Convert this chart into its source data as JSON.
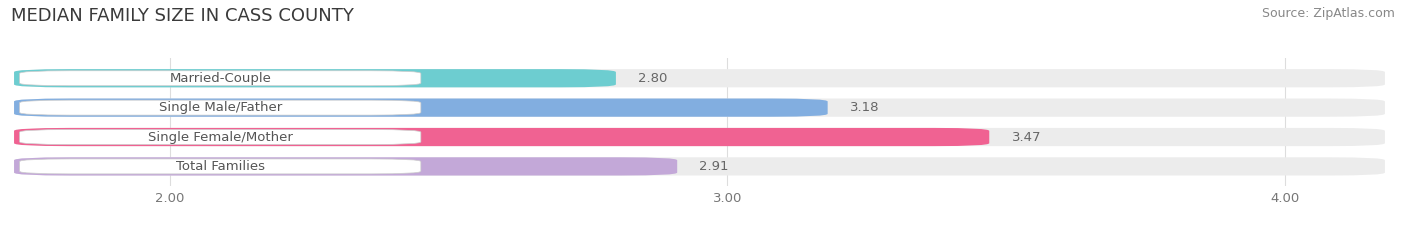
{
  "title": "MEDIAN FAMILY SIZE IN CASS COUNTY",
  "source": "Source: ZipAtlas.com",
  "categories": [
    "Married-Couple",
    "Single Male/Father",
    "Single Female/Mother",
    "Total Families"
  ],
  "values": [
    2.8,
    3.18,
    3.47,
    2.91
  ],
  "bar_colors": [
    "#6dcdd0",
    "#82aee0",
    "#f06292",
    "#c3a8d8"
  ],
  "bar_labels": [
    "2.80",
    "3.18",
    "3.47",
    "2.91"
  ],
  "xlim_min": 1.72,
  "xlim_max": 4.18,
  "xticks": [
    2.0,
    3.0,
    4.0
  ],
  "xtick_labels": [
    "2.00",
    "3.00",
    "4.00"
  ],
  "background_color": "#ffffff",
  "bar_bg_color": "#ececec",
  "bar_height": 0.62,
  "label_pill_color": "#ffffff",
  "label_text_color": "#555555",
  "value_text_color": "#666666",
  "title_fontsize": 13,
  "label_fontsize": 9.5,
  "value_fontsize": 9.5,
  "source_fontsize": 9,
  "grid_color": "#dddddd"
}
